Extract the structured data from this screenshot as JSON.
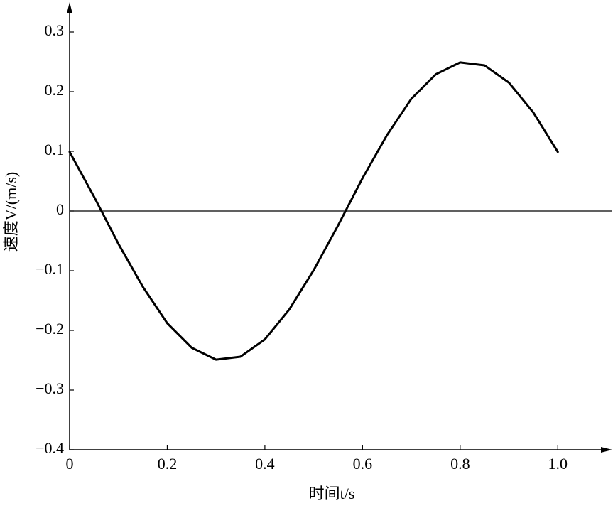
{
  "chart_data": {
    "type": "line",
    "x_label": "时间t/s",
    "y_label": "速度V/(m/s)",
    "x": [
      0,
      0.05,
      0.1,
      0.15,
      0.2,
      0.25,
      0.3,
      0.35,
      0.4,
      0.45,
      0.5,
      0.55,
      0.6,
      0.65,
      0.7,
      0.75,
      0.8,
      0.85,
      0.9,
      0.95,
      1.0
    ],
    "series": [
      {
        "color": "#000000",
        "values": [
          0.099,
          0.024,
          -0.055,
          -0.127,
          -0.188,
          -0.229,
          -0.249,
          -0.244,
          -0.215,
          -0.165,
          -0.099,
          -0.024,
          0.055,
          0.127,
          0.188,
          0.229,
          0.249,
          0.244,
          0.215,
          0.165,
          0.099
        ]
      }
    ],
    "xlim": [
      0,
      1.1
    ],
    "ylim": [
      -0.4,
      0.35
    ],
    "xticks": [
      0,
      0.2,
      0.4,
      0.6,
      0.8,
      {
        "value": 1,
        "label": "1.0"
      }
    ],
    "yticks": [
      {
        "value": -0.4,
        "label": "−0.4"
      },
      {
        "value": -0.3,
        "label": "−0.3"
      },
      {
        "value": -0.2,
        "label": "−0.2"
      },
      {
        "value": -0.1,
        "label": "−0.1"
      },
      0,
      0.1,
      0.2,
      0.3
    ],
    "zero_line": true,
    "grid": false
  }
}
